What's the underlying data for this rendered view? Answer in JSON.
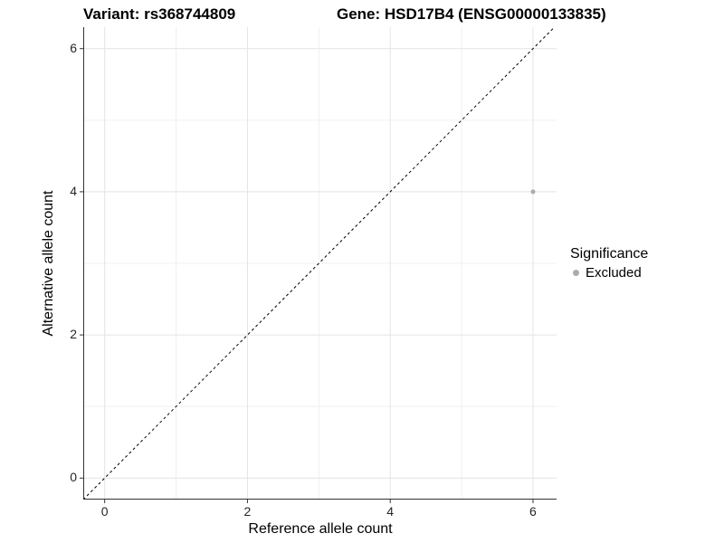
{
  "chart_data": {
    "type": "scatter",
    "titles": {
      "left": "Variant: rs368744809",
      "right": "Gene: HSD17B4 (ENSG00000133835)"
    },
    "xlabel": "Reference allele count",
    "ylabel": "Alternative allele count",
    "xlim": [
      -0.3,
      6.33
    ],
    "ylim": [
      -0.3,
      6.3
    ],
    "x_major_ticks": [
      0,
      2,
      4,
      6
    ],
    "y_major_ticks": [
      0,
      2,
      4,
      6
    ],
    "x_minor_gridlines": [
      1,
      3,
      5
    ],
    "y_minor_gridlines": [
      1,
      3,
      5
    ],
    "grid": "major+minor",
    "reference_line": {
      "kind": "identity y=x",
      "style": "dashed",
      "color": "#000000"
    },
    "series": [
      {
        "name": "Excluded",
        "color": "#ABABAB",
        "points": [
          [
            6,
            4
          ]
        ]
      }
    ],
    "legend": {
      "title": "Significance",
      "position": "right",
      "entries": [
        {
          "label": "Excluded",
          "color": "#ABABAB"
        }
      ]
    }
  },
  "colors": {
    "background": "#FFFFFF",
    "grid_major": "#E4E4E4",
    "grid_minor": "#F0F0F0",
    "axis_line": "#333333",
    "tick_text": "#262626",
    "point": "#ABABAB"
  }
}
